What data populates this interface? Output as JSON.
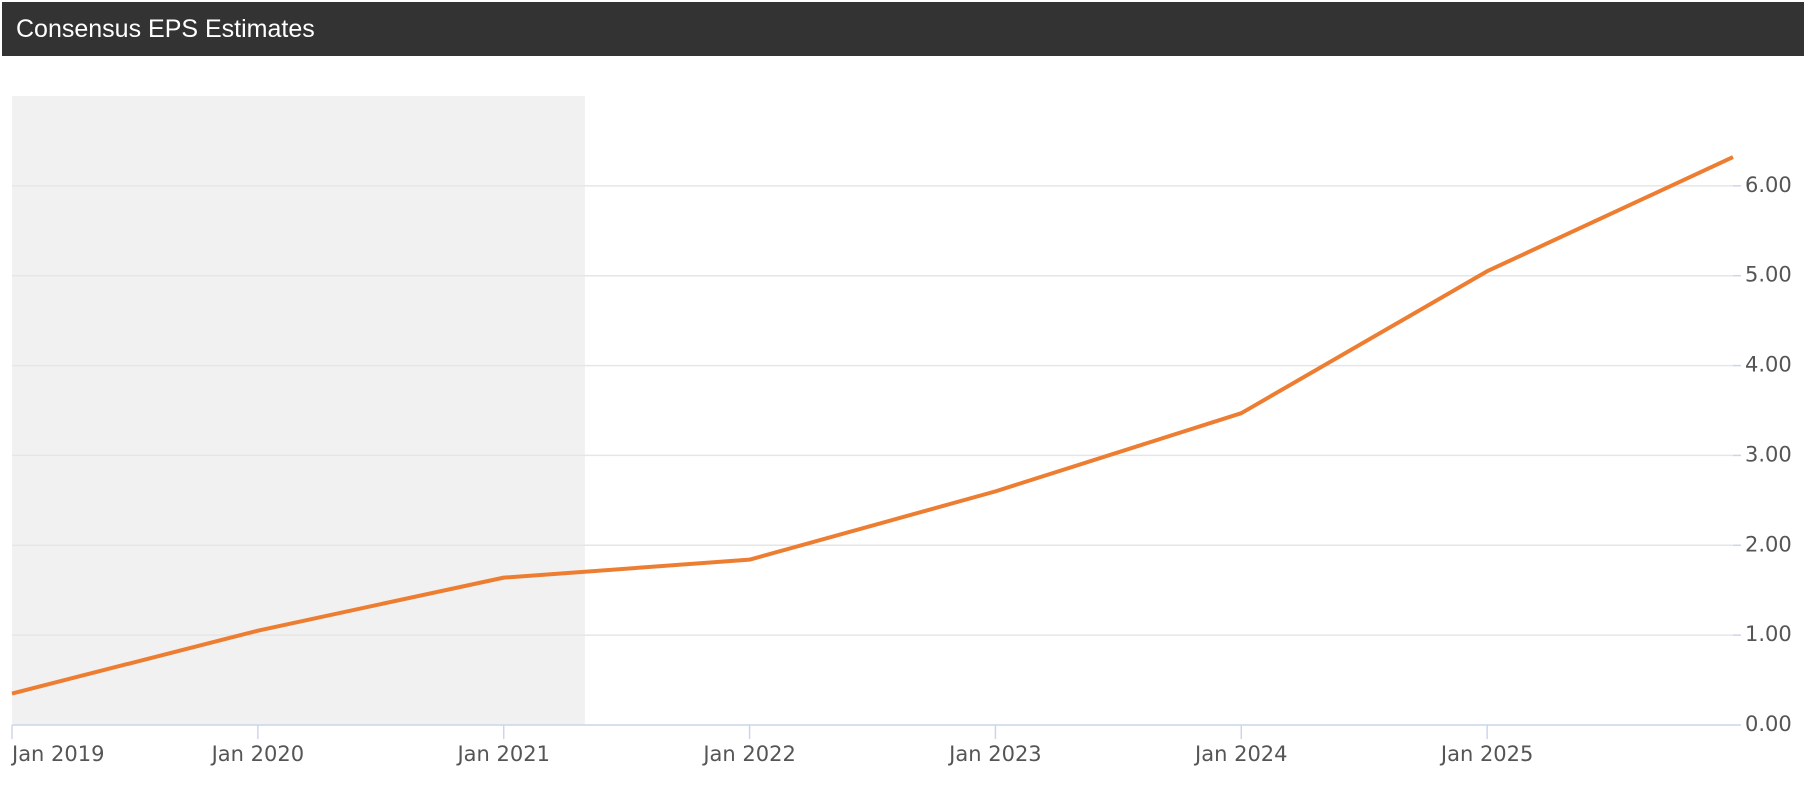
{
  "chart_data": {
    "type": "line",
    "title": "Consensus EPS Estimates",
    "x": [
      2019,
      2020,
      2021,
      2022,
      2023,
      2024,
      2025,
      2026
    ],
    "series": [
      {
        "name": "EPS",
        "color": "#ed7d31",
        "values": [
          0.35,
          1.05,
          1.64,
          1.84,
          2.6,
          3.47,
          5.05,
          6.32
        ]
      }
    ],
    "xlim": [
      2019,
      2026
    ],
    "xticks": [
      {
        "value": 2019,
        "label": "Jan 2019"
      },
      {
        "value": 2020,
        "label": "Jan 2020"
      },
      {
        "value": 2021,
        "label": "Jan 2021"
      },
      {
        "value": 2022,
        "label": "Jan 2022"
      },
      {
        "value": 2023,
        "label": "Jan 2023"
      },
      {
        "value": 2024,
        "label": "Jan 2024"
      },
      {
        "value": 2025,
        "label": "Jan 2025"
      }
    ],
    "ylim": [
      0,
      7
    ],
    "yticks": [
      {
        "value": 0,
        "label": "0.00"
      },
      {
        "value": 1,
        "label": "1.00"
      },
      {
        "value": 2,
        "label": "2.00"
      },
      {
        "value": 3,
        "label": "3.00"
      },
      {
        "value": 4,
        "label": "4.00"
      },
      {
        "value": 5,
        "label": "5.00"
      },
      {
        "value": 6,
        "label": "6.00"
      }
    ],
    "highlight_xrange": [
      2019,
      2021.33
    ],
    "grid": true
  }
}
